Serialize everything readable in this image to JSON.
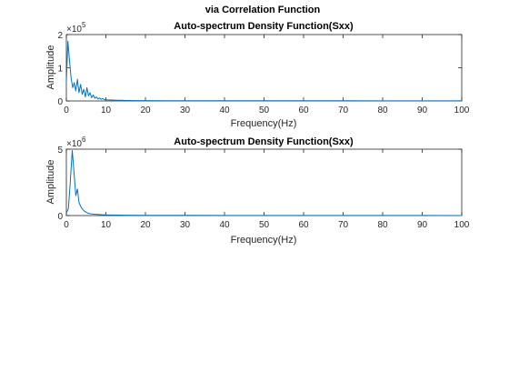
{
  "figure": {
    "suptitle": "via Correlation Function"
  },
  "colors": {
    "series": "#0072BD",
    "axis": "#262626",
    "background": "#ffffff"
  },
  "chart_data": [
    {
      "type": "line",
      "title": "Auto-spectrum Density Function(Sxx)",
      "xlabel": "Frequency(Hz)",
      "ylabel": "Amplitude",
      "xlim": [
        0,
        100
      ],
      "ylim": [
        0,
        200000
      ],
      "grid": false,
      "exponent_label": "×10",
      "exponent_value": "5",
      "xticks": [
        0,
        10,
        20,
        30,
        40,
        50,
        60,
        70,
        80,
        90,
        100
      ],
      "yticks": [
        0,
        1,
        2
      ],
      "series": [
        {
          "x": [
            0,
            0.4,
            0.8,
            1.2,
            1.6,
            2.0,
            2.4,
            2.8,
            3.2,
            3.6,
            4.0,
            4.4,
            4.8,
            5.2,
            5.6,
            6.0,
            6.4,
            6.8,
            7.2,
            7.6,
            8.0,
            8.4,
            8.8,
            9.2,
            9.6,
            10,
            11,
            12,
            13,
            14,
            15,
            16,
            18,
            20,
            25,
            30,
            40,
            50,
            60,
            70,
            80,
            90,
            100
          ],
          "y": [
            60000,
            180000,
            120000,
            70000,
            40000,
            55000,
            30000,
            65000,
            25000,
            50000,
            20000,
            35000,
            12000,
            40000,
            15000,
            25000,
            10000,
            18000,
            8000,
            12000,
            6000,
            9000,
            5000,
            7000,
            4000,
            3500,
            3000,
            2500,
            2000,
            1800,
            1500,
            1300,
            1100,
            1000,
            800,
            700,
            600,
            550,
            500,
            450,
            400,
            380,
            350
          ]
        }
      ]
    },
    {
      "type": "line",
      "title": "Auto-spectrum Density Function(Sxx)",
      "xlabel": "Frequency(Hz)",
      "ylabel": "Amplitude",
      "xlim": [
        0,
        100
      ],
      "ylim": [
        0,
        5000000
      ],
      "grid": false,
      "exponent_label": "×10",
      "exponent_value": "6",
      "xticks": [
        0,
        10,
        20,
        30,
        40,
        50,
        60,
        70,
        80,
        90,
        100
      ],
      "yticks": [
        0,
        5
      ],
      "series": [
        {
          "x": [
            0,
            0.5,
            1.0,
            1.5,
            2.0,
            2.4,
            2.8,
            3.2,
            3.6,
            4.0,
            4.5,
            5.0,
            5.5,
            6.0,
            7.0,
            8.0,
            9.0,
            10,
            12,
            15,
            20,
            30,
            40,
            50,
            60,
            70,
            80,
            90,
            100
          ],
          "y": [
            200000,
            500000,
            2500000,
            4900000,
            3000000,
            1500000,
            2000000,
            1000000,
            700000,
            500000,
            350000,
            250000,
            180000,
            140000,
            100000,
            80000,
            60000,
            50000,
            40000,
            30000,
            20000,
            15000,
            10000,
            8000,
            7000,
            6000,
            5000,
            4000,
            3000
          ]
        }
      ]
    }
  ]
}
